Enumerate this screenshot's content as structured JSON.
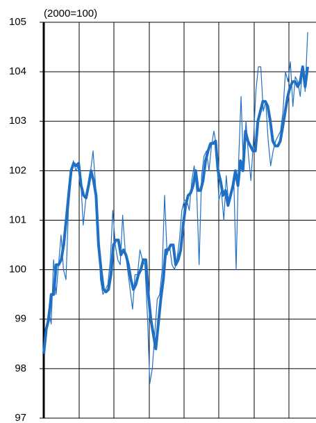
{
  "chart_data": {
    "type": "line",
    "annotation": "(2000=100)",
    "ylim": [
      97,
      105
    ],
    "yticks": [
      97,
      98,
      99,
      100,
      101,
      102,
      103,
      104,
      105
    ],
    "grid": true,
    "series": [
      {
        "name": null,
        "color": "#1f6fc5",
        "width": 1.2,
        "values": [
          98.3,
          98.8,
          99.2,
          98.9,
          100.2,
          99.5,
          100.1,
          100.7,
          100.0,
          99.8,
          101.2,
          101.8,
          102.2,
          102.0,
          102.1,
          101.8,
          100.9,
          101.4,
          101.7,
          102.0,
          102.4,
          101.7,
          100.8,
          99.8,
          99.5,
          99.6,
          99.7,
          100.2,
          101.2,
          100.5,
          100.2,
          100.1,
          101.1,
          100.4,
          100.0,
          99.6,
          99.2,
          99.9,
          99.9,
          100.4,
          100.2,
          100.1,
          99.1,
          97.7,
          98.0,
          98.7,
          99.4,
          99.5,
          100.0,
          101.5,
          100.3,
          100.5,
          100.1,
          100.0,
          100.2,
          100.6,
          101.2,
          101.4,
          101.4,
          101.2,
          101.8,
          102.1,
          101.6,
          100.1,
          101.9,
          102.3,
          102.4,
          102.0,
          102.5,
          102.8,
          102.5,
          101.4,
          101.6,
          101.0,
          101.9,
          101.3,
          101.6,
          101.9,
          100.0,
          102.2,
          103.5,
          102.0,
          103.0,
          102.3,
          101.8,
          102.6,
          103.6,
          104.1,
          104.1,
          103.2,
          103.4,
          102.6,
          102.1,
          102.4,
          102.6,
          102.7,
          102.8,
          103.2,
          104.0,
          103.8,
          104.2,
          103.3,
          103.9,
          103.8,
          103.5,
          104.1,
          103.6,
          104.8
        ]
      },
      {
        "name": null,
        "color": "#1f6fc5",
        "width": 4,
        "values": [
          98.3,
          98.8,
          99.0,
          99.5,
          99.5,
          100.1,
          100.1,
          100.2,
          100.5,
          101.0,
          101.5,
          102.0,
          102.15,
          102.1,
          102.15,
          101.7,
          101.5,
          101.45,
          101.7,
          102.0,
          101.8,
          101.5,
          100.5,
          100.0,
          99.6,
          99.55,
          99.6,
          99.9,
          100.5,
          100.6,
          100.6,
          100.3,
          100.4,
          100.3,
          100.1,
          99.8,
          99.6,
          99.7,
          99.9,
          100.0,
          100.2,
          100.2,
          99.5,
          99.0,
          98.7,
          98.4,
          98.9,
          99.4,
          99.8,
          100.4,
          100.4,
          100.5,
          100.5,
          100.1,
          100.2,
          100.4,
          100.9,
          101.3,
          101.5,
          101.55,
          101.7,
          102.0,
          101.6,
          101.6,
          101.8,
          102.2,
          102.4,
          102.55,
          102.55,
          102.6,
          102.0,
          101.8,
          101.5,
          101.6,
          101.3,
          101.5,
          101.7,
          102.0,
          101.7,
          102.2,
          102.0,
          102.8,
          102.6,
          102.5,
          102.4,
          102.4,
          103.0,
          103.2,
          103.4,
          103.4,
          103.3,
          103.0,
          102.6,
          102.5,
          102.5,
          102.6,
          102.9,
          103.2,
          103.5,
          103.7,
          103.8,
          103.8,
          103.7,
          103.8,
          104.1,
          103.7,
          104.1
        ]
      }
    ]
  }
}
